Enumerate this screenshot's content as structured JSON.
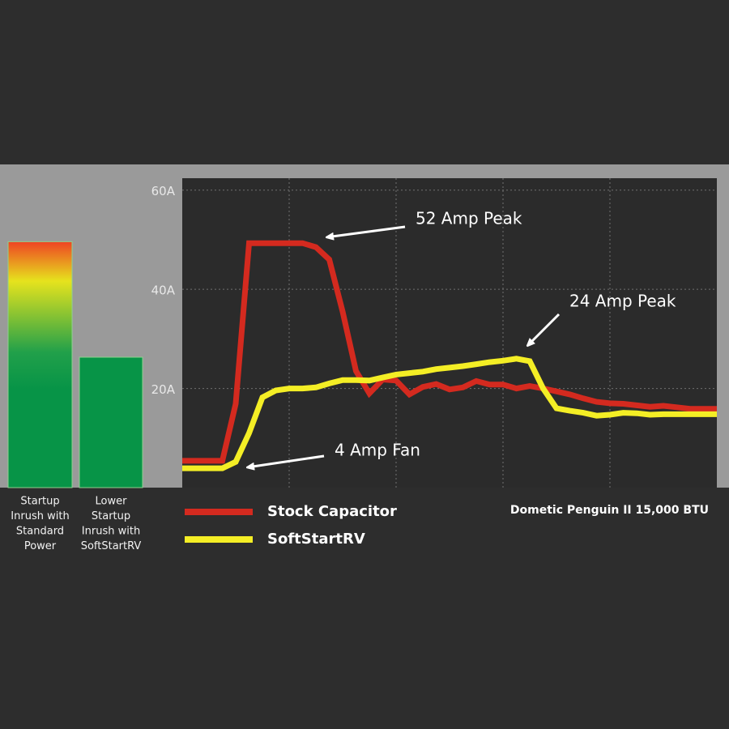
{
  "chart_data": [
    {
      "type": "bar",
      "categories": [
        [
          "Startup",
          "Inrush with",
          "Standard",
          "Power"
        ],
        [
          "Lower",
          "Startup",
          "Inrush with",
          "SoftStartRV"
        ]
      ],
      "values": [
        49.6,
        26.3
      ],
      "colors": [
        [
          "#ee4423",
          "#e6e31d",
          "#21a04a",
          "#079447"
        ],
        [
          "#079447"
        ]
      ]
    },
    {
      "type": "line",
      "subtitle": "Dometic Penguin II 15,000 BTU",
      "annotations": [
        "52 Amp Peak",
        "24 Amp Peak",
        "4 Amp Fan"
      ],
      "x": [
        0,
        2.5,
        5,
        7.5,
        10,
        12.5,
        15,
        17.5,
        20,
        22.5,
        25,
        27.5,
        30,
        32.5,
        35,
        37.5,
        40,
        42.5,
        45,
        47.5,
        50,
        52.5,
        55,
        57.5,
        60,
        62.5,
        65,
        67.5,
        70,
        72.5,
        75,
        77.5,
        80,
        82.5,
        85,
        87.5,
        90,
        92.5,
        95,
        97.5,
        100
      ],
      "xlim": [
        0,
        100
      ],
      "ylim": [
        0,
        62.4
      ],
      "yticks": [
        {
          "value": 20,
          "label": "20A"
        },
        {
          "value": 40,
          "label": "40A"
        },
        {
          "value": 60,
          "label": "60A"
        }
      ],
      "grid": true,
      "series": [
        {
          "name": "Stock Capacitor",
          "color": "#d42a1f",
          "values": [
            5.4,
            5.4,
            5.4,
            5.4,
            16.9,
            49.3,
            49.3,
            49.3,
            49.3,
            49.3,
            48.5,
            46,
            35.5,
            23.5,
            19,
            21.8,
            21.6,
            18.8,
            20.3,
            20.9,
            19.8,
            20.2,
            21.5,
            20.8,
            20.8,
            20,
            20.5,
            20,
            19.4,
            18.8,
            18,
            17.3,
            17,
            16.9,
            16.6,
            16.3,
            16.5,
            16.2,
            15.9,
            15.9,
            15.9
          ]
        },
        {
          "name": "SoftStartRV",
          "color": "#f4ee25",
          "values": [
            3.9,
            3.9,
            3.9,
            3.9,
            5.2,
            11,
            18.2,
            19.6,
            20,
            20,
            20.2,
            21,
            21.7,
            21.7,
            21.6,
            22.2,
            22.8,
            23.1,
            23.4,
            23.9,
            24.2,
            24.5,
            24.9,
            25.3,
            25.6,
            26,
            25.5,
            20,
            16,
            15.5,
            15.1,
            14.5,
            14.7,
            15.1,
            15,
            14.7,
            14.8,
            14.8,
            14.8,
            14.8,
            14.8
          ]
        }
      ]
    }
  ]
}
